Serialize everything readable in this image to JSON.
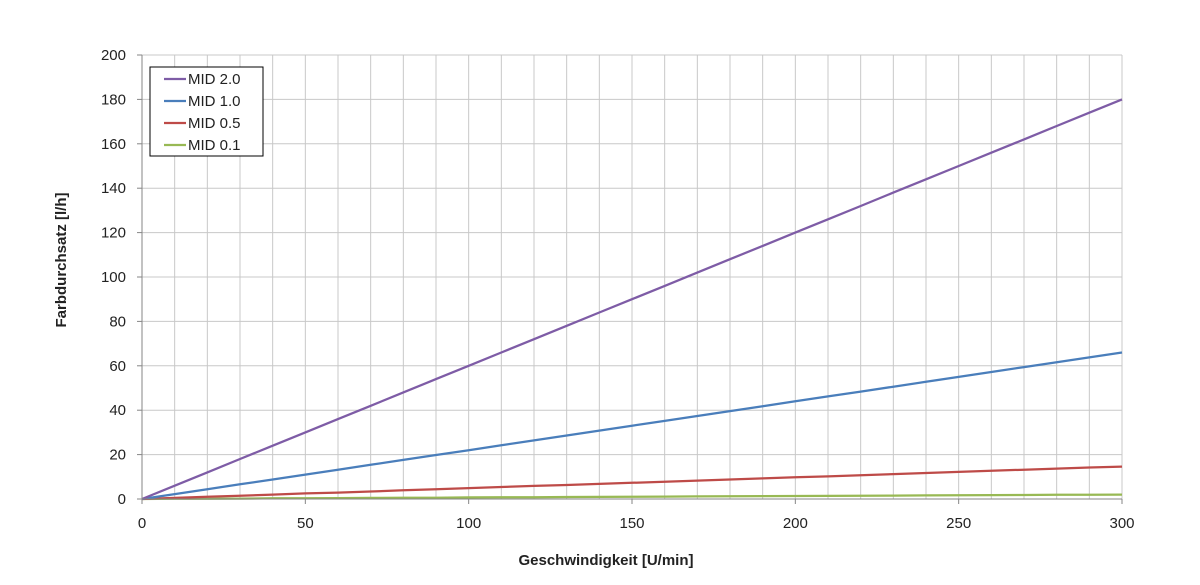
{
  "chart_data": {
    "type": "line",
    "xlabel": "Geschwindigkeit   [U/min]",
    "ylabel": "Farbdurchsatz  [l/h]",
    "xlim": [
      0,
      300
    ],
    "ylim": [
      0,
      200
    ],
    "x_major_ticks": [
      0,
      50,
      100,
      150,
      200,
      250,
      300
    ],
    "x_minor_step": 10,
    "y_ticks": [
      0,
      20,
      40,
      60,
      80,
      100,
      120,
      140,
      160,
      180,
      200
    ],
    "grid": true,
    "legend_position": "top-left",
    "x": [
      0,
      10,
      20,
      30,
      40,
      50,
      60,
      70,
      80,
      90,
      100,
      110,
      120,
      130,
      140,
      150,
      160,
      170,
      180,
      190,
      200,
      210,
      220,
      230,
      240,
      250,
      260,
      270,
      280,
      290,
      300
    ],
    "series": [
      {
        "name": "MID 2.0",
        "color": "#7e5ca6",
        "values": [
          0,
          6,
          12,
          18,
          24,
          30,
          36,
          42,
          48,
          54,
          60,
          66,
          72,
          78,
          84,
          90,
          96,
          102,
          108,
          114,
          120,
          126,
          132,
          138,
          144,
          150,
          156,
          162,
          168,
          174,
          180
        ]
      },
      {
        "name": "MID 1.0",
        "color": "#4a7ebb",
        "values": [
          0,
          2.2,
          4.4,
          6.6,
          8.8,
          11,
          13.2,
          15.4,
          17.6,
          19.8,
          22,
          24.2,
          26.4,
          28.6,
          30.8,
          33,
          35.2,
          37.4,
          39.6,
          41.8,
          44,
          46.2,
          48.4,
          50.6,
          52.8,
          55,
          57.2,
          59.4,
          61.6,
          63.8,
          66
        ]
      },
      {
        "name": "MID 0.5",
        "color": "#be4b48",
        "values": [
          0,
          0.5,
          1,
          1.5,
          2,
          2.5,
          2.9,
          3.4,
          3.9,
          4.4,
          4.9,
          5.4,
          5.9,
          6.3,
          6.8,
          7.3,
          7.8,
          8.3,
          8.8,
          9.3,
          9.8,
          10.2,
          10.7,
          11.2,
          11.7,
          12.2,
          12.7,
          13.2,
          13.7,
          14.2,
          14.6
        ]
      },
      {
        "name": "MID 0.1",
        "color": "#98b954",
        "values": [
          0,
          0.1,
          0.15,
          0.2,
          0.3,
          0.35,
          0.4,
          0.5,
          0.55,
          0.6,
          0.7,
          0.75,
          0.8,
          0.9,
          0.95,
          1,
          1.1,
          1.15,
          1.2,
          1.3,
          1.35,
          1.4,
          1.5,
          1.55,
          1.6,
          1.7,
          1.75,
          1.8,
          1.9,
          1.95,
          2
        ]
      }
    ]
  }
}
